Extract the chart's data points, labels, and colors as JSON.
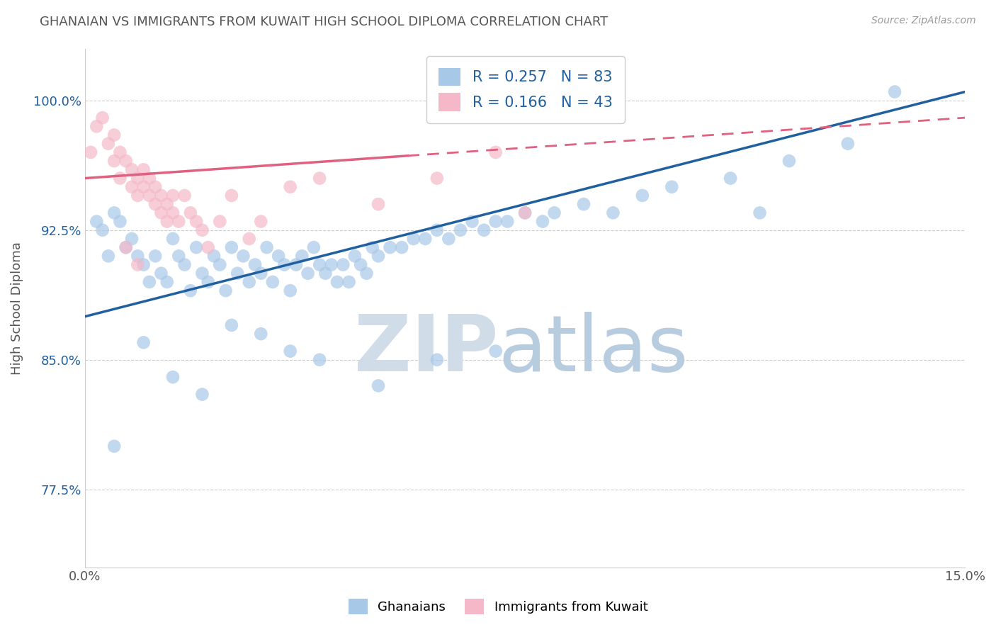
{
  "title": "GHANAIAN VS IMMIGRANTS FROM KUWAIT HIGH SCHOOL DIPLOMA CORRELATION CHART",
  "source_text": "Source: ZipAtlas.com",
  "ylabel": "High School Diploma",
  "xlim": [
    0.0,
    15.0
  ],
  "ylim": [
    73.0,
    103.0
  ],
  "yticks": [
    77.5,
    85.0,
    92.5,
    100.0
  ],
  "ytick_labels": [
    "77.5%",
    "85.0%",
    "92.5%",
    "100.0%"
  ],
  "xticks": [
    0.0,
    15.0
  ],
  "xtick_labels": [
    "0.0%",
    "15.0%"
  ],
  "blue_color": "#a8c8e8",
  "pink_color": "#f4b8c8",
  "blue_line_color": "#2060a0",
  "pink_line_color": "#e06080",
  "R_blue": 0.257,
  "N_blue": 83,
  "R_pink": 0.166,
  "N_pink": 43,
  "watermark_zip": "ZIP",
  "watermark_atlas": "atlas",
  "watermark_color_zip": "#d0dce8",
  "watermark_color_atlas": "#b8cce0",
  "blue_scatter_x": [
    0.2,
    0.3,
    0.4,
    0.5,
    0.6,
    0.7,
    0.8,
    0.9,
    1.0,
    1.1,
    1.2,
    1.3,
    1.4,
    1.5,
    1.6,
    1.7,
    1.8,
    1.9,
    2.0,
    2.1,
    2.2,
    2.3,
    2.4,
    2.5,
    2.6,
    2.7,
    2.8,
    2.9,
    3.0,
    3.1,
    3.2,
    3.3,
    3.4,
    3.5,
    3.6,
    3.7,
    3.8,
    3.9,
    4.0,
    4.1,
    4.2,
    4.3,
    4.4,
    4.5,
    4.6,
    4.7,
    4.8,
    4.9,
    5.0,
    5.2,
    5.4,
    5.6,
    5.8,
    6.0,
    6.2,
    6.4,
    6.6,
    6.8,
    7.0,
    7.2,
    7.5,
    7.8,
    8.0,
    8.5,
    9.0,
    9.5,
    10.0,
    11.0,
    12.0,
    13.0,
    1.0,
    1.5,
    2.0,
    2.5,
    3.0,
    3.5,
    4.0,
    5.0,
    6.0,
    7.0,
    13.8,
    11.5,
    0.5
  ],
  "blue_scatter_y": [
    93.0,
    92.5,
    91.0,
    93.5,
    93.0,
    91.5,
    92.0,
    91.0,
    90.5,
    89.5,
    91.0,
    90.0,
    89.5,
    92.0,
    91.0,
    90.5,
    89.0,
    91.5,
    90.0,
    89.5,
    91.0,
    90.5,
    89.0,
    91.5,
    90.0,
    91.0,
    89.5,
    90.5,
    90.0,
    91.5,
    89.5,
    91.0,
    90.5,
    89.0,
    90.5,
    91.0,
    90.0,
    91.5,
    90.5,
    90.0,
    90.5,
    89.5,
    90.5,
    89.5,
    91.0,
    90.5,
    90.0,
    91.5,
    91.0,
    91.5,
    91.5,
    92.0,
    92.0,
    92.5,
    92.0,
    92.5,
    93.0,
    92.5,
    93.0,
    93.0,
    93.5,
    93.0,
    93.5,
    94.0,
    93.5,
    94.5,
    95.0,
    95.5,
    96.5,
    97.5,
    86.0,
    84.0,
    83.0,
    87.0,
    86.5,
    85.5,
    85.0,
    83.5,
    85.0,
    85.5,
    100.5,
    93.5,
    80.0
  ],
  "pink_scatter_x": [
    0.1,
    0.2,
    0.3,
    0.4,
    0.5,
    0.5,
    0.6,
    0.6,
    0.7,
    0.8,
    0.8,
    0.9,
    0.9,
    1.0,
    1.0,
    1.1,
    1.1,
    1.2,
    1.2,
    1.3,
    1.3,
    1.4,
    1.4,
    1.5,
    1.5,
    1.6,
    1.7,
    1.8,
    1.9,
    2.0,
    2.1,
    2.3,
    2.5,
    2.8,
    3.0,
    3.5,
    4.0,
    5.0,
    6.0,
    7.0,
    0.7,
    0.9,
    7.5
  ],
  "pink_scatter_y": [
    97.0,
    98.5,
    99.0,
    97.5,
    98.0,
    96.5,
    97.0,
    95.5,
    96.5,
    95.0,
    96.0,
    95.5,
    94.5,
    95.0,
    96.0,
    94.5,
    95.5,
    94.0,
    95.0,
    94.5,
    93.5,
    93.0,
    94.0,
    93.5,
    94.5,
    93.0,
    94.5,
    93.5,
    93.0,
    92.5,
    91.5,
    93.0,
    94.5,
    92.0,
    93.0,
    95.0,
    95.5,
    94.0,
    95.5,
    97.0,
    91.5,
    90.5,
    93.5
  ],
  "blue_line_x0": 0.0,
  "blue_line_y0": 87.5,
  "blue_line_x1": 15.0,
  "blue_line_y1": 100.5,
  "pink_line_solid_x0": 0.0,
  "pink_line_solid_y0": 95.5,
  "pink_line_solid_x1": 5.5,
  "pink_line_solid_y1": 96.8,
  "pink_line_dash_x0": 5.5,
  "pink_line_dash_y0": 96.8,
  "pink_line_dash_x1": 15.0,
  "pink_line_dash_y1": 99.0
}
